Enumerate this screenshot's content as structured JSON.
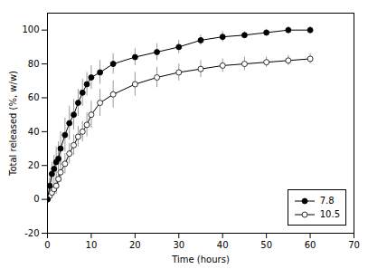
{
  "chart_data": {
    "type": "line",
    "xlabel": "Time (hours)",
    "ylabel": "Total released (%, w/w)",
    "xlim": [
      0,
      70
    ],
    "ylim": [
      -20,
      110
    ],
    "xticks": [
      0,
      10,
      20,
      30,
      40,
      50,
      60,
      70
    ],
    "yticks": [
      -20,
      0,
      20,
      40,
      60,
      80,
      100
    ],
    "grid": false,
    "legend": "lower right",
    "x": [
      0,
      0.5,
      1,
      1.5,
      2,
      2.5,
      3,
      4,
      5,
      6,
      7,
      8,
      9,
      10,
      12,
      15,
      20,
      25,
      30,
      35,
      40,
      45,
      50,
      55,
      60
    ],
    "series": [
      {
        "name": "7.8",
        "color": "black",
        "marker": "circle",
        "line_style": "solid",
        "values": [
          0,
          8,
          15,
          18,
          22,
          24,
          30,
          38,
          45,
          50,
          57,
          63,
          68,
          72,
          75,
          80,
          84,
          87,
          90,
          94,
          96,
          97,
          98.5,
          100,
          100
        ],
        "yerr": [
          1,
          5,
          7,
          8,
          9,
          10,
          10,
          10,
          10,
          9,
          8,
          8,
          7,
          7,
          7,
          6,
          5,
          5,
          4,
          3,
          3,
          2,
          2,
          2,
          2
        ]
      },
      {
        "name": "10.5",
        "color": "black",
        "marker": "open_circle",
        "line_style": "solid",
        "values": [
          0,
          2,
          4,
          6,
          8,
          12,
          16,
          21,
          27,
          32,
          37,
          40,
          44,
          50,
          57,
          62,
          68,
          72,
          75,
          77,
          79,
          80,
          81,
          82,
          83
        ],
        "yerr": [
          1,
          2,
          3,
          4,
          5,
          5,
          6,
          6,
          6,
          6,
          6,
          6,
          7,
          8,
          8,
          8,
          7,
          6,
          5,
          5,
          4,
          4,
          3,
          3,
          3
        ]
      }
    ]
  }
}
